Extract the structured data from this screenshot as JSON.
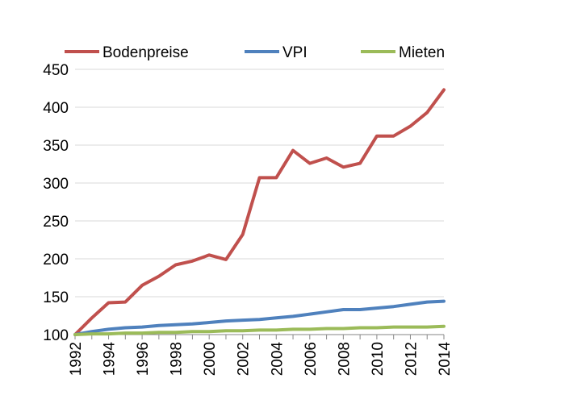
{
  "chart_data": {
    "type": "line",
    "title": "",
    "xlabel": "",
    "ylabel": "",
    "x": [
      1992,
      1993,
      1994,
      1995,
      1996,
      1997,
      1998,
      1999,
      2000,
      2001,
      2002,
      2003,
      2004,
      2005,
      2006,
      2007,
      2008,
      2009,
      2010,
      2011,
      2012,
      2013,
      2014
    ],
    "x_ticks": [
      "1992",
      "1994",
      "1996",
      "1998",
      "2000",
      "2002",
      "2004",
      "2006",
      "2008",
      "2010",
      "2012",
      "2014"
    ],
    "y_ticks": [
      "100",
      "150",
      "200",
      "250",
      "300",
      "350",
      "400",
      "450"
    ],
    "ylim": [
      100,
      450
    ],
    "xlim": [
      1992,
      2014
    ],
    "grid": true,
    "legend_position": "top",
    "series": [
      {
        "name": "Bodenpreise",
        "color": "#c0504d",
        "values": [
          100,
          122,
          142,
          143,
          165,
          177,
          192,
          197,
          205,
          199,
          232,
          307,
          307,
          343,
          326,
          333,
          321,
          326,
          362,
          362,
          375,
          393,
          423
        ]
      },
      {
        "name": "VPI",
        "color": "#4f81bd",
        "values": [
          100,
          104,
          107,
          109,
          110,
          112,
          113,
          114,
          116,
          118,
          119,
          120,
          122,
          124,
          127,
          130,
          133,
          133,
          135,
          137,
          140,
          143,
          144
        ]
      },
      {
        "name": "Mieten",
        "color": "#9bbb59",
        "values": [
          100,
          101,
          101,
          102,
          102,
          103,
          103,
          104,
          104,
          105,
          105,
          106,
          106,
          107,
          107,
          108,
          108,
          109,
          109,
          110,
          110,
          110,
          111
        ]
      }
    ]
  }
}
